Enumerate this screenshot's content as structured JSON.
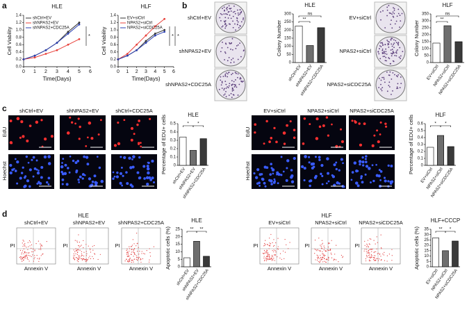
{
  "panel_labels": [
    "a",
    "b",
    "c",
    "d"
  ],
  "colony_images": [
    [
      "shCtrl+EV",
      "shNPAS2+EV",
      "shNPAS2+CDC25A"
    ],
    [
      "EV+siCtrl",
      "NPAS2+siCtrl",
      "NPAS2+siCDC25A"
    ]
  ],
  "edu_images": {
    "row_labels": [
      "EdU",
      "Hoechst"
    ],
    "columns": [
      [
        "shCtrl+EV",
        "shNPAS2+EV",
        "shCtrl+CDC25A"
      ],
      [
        "EV+siCtrl",
        "NPAS2+siCtrl",
        "NPAS2+siCDC25A"
      ]
    ]
  },
  "flow_images": {
    "titles": [
      "HLE",
      "HLF"
    ],
    "y_label": "PI",
    "x_label": "Annexin V",
    "columns": [
      [
        "shCtrl+EV",
        "shNPAS2+EV",
        "shNPAS2+CDC25A"
      ],
      [
        "EV+siCtrl",
        "NPAS2+siCtrl",
        "NPAS2+siCDC25A"
      ]
    ]
  },
  "chart_data": [
    {
      "type": "line",
      "title": "HLE",
      "x_label": "Time(Days)",
      "y_label": "Cell Viability",
      "legend": "top-left",
      "x": [
        0,
        1,
        2,
        3,
        4,
        5
      ],
      "xlim": [
        0,
        6
      ],
      "xticks": [
        0,
        1,
        2,
        3,
        4,
        5,
        6
      ],
      "ylim": [
        0,
        1.4
      ],
      "yticks": [
        {
          "value": 0,
          "label": "0.0"
        },
        0.2,
        0.4,
        0.6,
        0.8,
        {
          "value": 1,
          "label": "1.0"
        },
        1.2,
        1.4
      ],
      "series": [
        {
          "name": "shCtrl+EV",
          "color": "#333333",
          "values": [
            0.2,
            0.3,
            0.45,
            0.65,
            0.95,
            1.2
          ]
        },
        {
          "name": "shNPAS2+EV",
          "color": "#e8403a",
          "values": [
            0.2,
            0.25,
            0.35,
            0.45,
            0.6,
            0.75
          ]
        },
        {
          "name": "shNPAS2+CDC25A",
          "color": "#2b3fb0",
          "values": [
            0.2,
            0.3,
            0.45,
            0.65,
            0.9,
            1.15
          ]
        }
      ],
      "annotations": [
        "*"
      ]
    },
    {
      "type": "line",
      "title": "HLF",
      "x_label": "Time(Days)",
      "y_label": "Cell Viability",
      "legend": "top-left",
      "x": [
        0,
        1,
        2,
        3,
        4,
        5
      ],
      "xlim": [
        0,
        6
      ],
      "xticks": [
        0,
        1,
        2,
        3,
        4,
        5,
        6
      ],
      "ylim": [
        0,
        1.4
      ],
      "yticks": [
        {
          "value": 0,
          "label": "0.0"
        },
        0.2,
        0.4,
        0.6,
        0.8,
        {
          "value": 1,
          "label": "1.0"
        },
        1.2,
        1.4
      ],
      "series": [
        {
          "name": "EV+siCtrl",
          "color": "#333333",
          "values": [
            0.2,
            0.3,
            0.45,
            0.7,
            0.9,
            1.0
          ]
        },
        {
          "name": "NPAS2+siCtrl",
          "color": "#e8403a",
          "values": [
            0.2,
            0.35,
            0.6,
            0.85,
            1.1,
            1.3
          ]
        },
        {
          "name": "NPAS2+siCDC25A",
          "color": "#2b3fb0",
          "values": [
            0.2,
            0.3,
            0.45,
            0.65,
            0.85,
            0.95
          ]
        }
      ],
      "annotations": [
        "*",
        "*"
      ]
    },
    {
      "type": "bar",
      "title": "HLE",
      "y_label": "Colony Number",
      "categories": [
        "shCtrl+EV",
        "shNPAS2+EV",
        "shNPAS2+CDC25A"
      ],
      "values": [
        225,
        105,
        215
      ],
      "colors": [
        "#ffffff",
        "#6e6e6e",
        "#3a3a3a"
      ],
      "ylim": [
        0,
        300
      ],
      "yticks": [
        0,
        50,
        100,
        150,
        200,
        250,
        300
      ],
      "annotations": [
        "ns",
        "**"
      ]
    },
    {
      "type": "bar",
      "title": "HLF",
      "y_label": "Colony Number",
      "categories": [
        "EV+siCtrl",
        "NPAS2+siCtrl",
        "NPAS2+siCDC25A"
      ],
      "values": [
        140,
        265,
        150
      ],
      "colors": [
        "#ffffff",
        "#6e6e6e",
        "#3a3a3a"
      ],
      "ylim": [
        0,
        350
      ],
      "yticks": [
        0,
        50,
        100,
        150,
        200,
        250,
        300,
        350
      ],
      "annotations": [
        "ns",
        "**"
      ]
    },
    {
      "type": "bar",
      "title": "HLE",
      "y_label": "Percentage of EDU+ cells",
      "categories": [
        "shCtrl+EV",
        "shNPAS2+EV",
        "shNPAS2+CDC25A"
      ],
      "values": [
        0.34,
        0.18,
        0.32
      ],
      "colors": [
        "#ffffff",
        "#6e6e6e",
        "#3a3a3a"
      ],
      "ylim": [
        0,
        0.5
      ],
      "yticks": [
        0,
        0.1,
        0.2,
        0.3,
        0.4,
        0.5
      ],
      "annotations": [
        "*",
        "*"
      ]
    },
    {
      "type": "bar",
      "title": "HLF",
      "y_label": "Percentage of EDU+ cells",
      "categories": [
        "EV+siCtrl",
        "NPAS2+siCtrl",
        "NPAS2+siCDC25A"
      ],
      "values": [
        0.26,
        0.43,
        0.27
      ],
      "colors": [
        "#ffffff",
        "#6e6e6e",
        "#3a3a3a"
      ],
      "ylim": [
        0,
        0.6
      ],
      "yticks": [
        0,
        0.1,
        0.2,
        0.3,
        0.4,
        0.5,
        0.6
      ],
      "annotations": [
        "*",
        "*"
      ]
    },
    {
      "type": "bar",
      "title": "HLE",
      "y_label": "Apoptotic cells (%)",
      "categories": [
        "shCtrl+EV",
        "shNPAS2+EV",
        "shNPAS2+CDC25A"
      ],
      "values": [
        6,
        17,
        7
      ],
      "colors": [
        "#ffffff",
        "#6e6e6e",
        "#3a3a3a"
      ],
      "ylim": [
        0,
        25
      ],
      "yticks": [
        0,
        5,
        10,
        15,
        20,
        25
      ],
      "annotations": [
        "**",
        "**"
      ]
    },
    {
      "type": "bar",
      "title": "HLF+CCCP",
      "y_label": "Apoptotic cells (%)",
      "categories": [
        "EV+siCtrl",
        "NPAS2+siCtrl",
        "NPAS2+siCDC25A"
      ],
      "values": [
        27,
        15,
        24
      ],
      "colors": [
        "#ffffff",
        "#6e6e6e",
        "#3a3a3a"
      ],
      "ylim": [
        0,
        35
      ],
      "yticks": [
        0,
        5,
        10,
        15,
        20,
        25,
        30,
        35
      ],
      "annotations": [
        "**",
        "*"
      ]
    }
  ]
}
